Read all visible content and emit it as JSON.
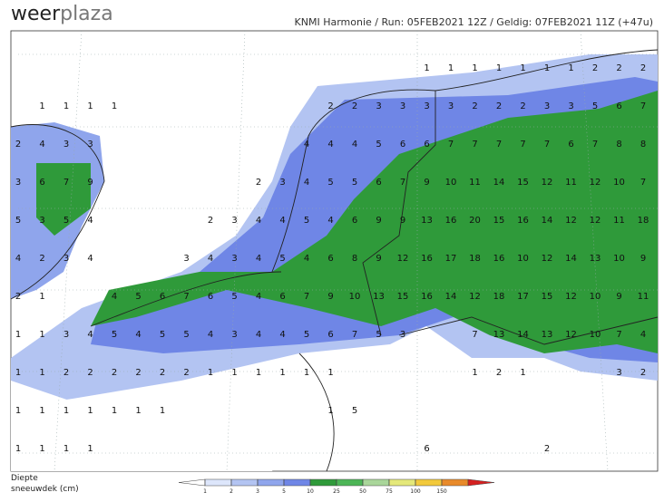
{
  "header": {
    "logo_a": "weer",
    "logo_b": "plaza",
    "model_info": "KNMI Harmonie  /  Run: 05FEB2021 12Z  /  Geldig: 07FEB2021 11Z (+47u)"
  },
  "legend": {
    "title_line1": "Diepte",
    "title_line2": "sneeuwdek (cm)",
    "ticks": [
      1,
      2,
      3,
      5,
      10,
      25,
      50,
      75,
      100,
      150
    ],
    "colors": [
      "#ffffff",
      "#dde6fb",
      "#b3c4f2",
      "#8fa5ec",
      "#6f86e6",
      "#2f9a3a",
      "#4cb556",
      "#a9d69a",
      "#e4e87a",
      "#f2c93b",
      "#e88a2a",
      "#d42020"
    ]
  },
  "map_labels": [
    [
      null,
      null,
      null,
      null,
      null,
      null,
      null,
      null,
      null,
      null,
      null,
      null,
      null,
      null,
      null,
      null,
      null,
      1,
      1,
      1,
      1,
      1,
      1,
      1,
      2,
      2,
      2
    ],
    [
      null,
      1,
      1,
      1,
      1,
      null,
      null,
      null,
      null,
      null,
      null,
      null,
      null,
      2,
      2,
      3,
      3,
      3,
      3,
      2,
      2,
      2,
      3,
      3,
      5,
      6,
      7
    ],
    [
      2,
      4,
      3,
      3,
      null,
      null,
      null,
      null,
      null,
      null,
      null,
      null,
      4,
      4,
      4,
      5,
      6,
      6,
      7,
      7,
      7,
      7,
      7,
      6,
      7,
      8,
      8
    ],
    [
      3,
      6,
      7,
      9,
      null,
      null,
      null,
      null,
      null,
      null,
      2,
      3,
      4,
      5,
      5,
      6,
      7,
      9,
      10,
      11,
      14,
      15,
      12,
      11,
      12,
      10,
      7
    ],
    [
      5,
      3,
      5,
      4,
      null,
      null,
      null,
      null,
      2,
      3,
      4,
      4,
      5,
      4,
      6,
      9,
      9,
      13,
      16,
      20,
      15,
      16,
      14,
      12,
      12,
      11,
      18
    ],
    [
      4,
      2,
      3,
      4,
      null,
      null,
      null,
      3,
      4,
      3,
      4,
      5,
      4,
      6,
      8,
      9,
      12,
      16,
      17,
      18,
      16,
      10,
      12,
      14,
      13,
      10,
      9
    ],
    [
      2,
      1,
      null,
      null,
      4,
      5,
      6,
      7,
      6,
      5,
      4,
      6,
      7,
      9,
      10,
      13,
      15,
      16,
      14,
      12,
      18,
      17,
      15,
      12,
      10,
      9,
      11
    ],
    [
      1,
      1,
      3,
      4,
      5,
      4,
      5,
      5,
      4,
      3,
      4,
      4,
      5,
      6,
      7,
      5,
      3,
      null,
      null,
      7,
      13,
      14,
      13,
      12,
      10,
      7,
      4
    ],
    [
      1,
      1,
      2,
      2,
      2,
      2,
      2,
      2,
      1,
      1,
      1,
      1,
      1,
      1,
      null,
      null,
      null,
      null,
      null,
      1,
      2,
      1,
      null,
      null,
      null,
      3,
      2
    ],
    [
      1,
      1,
      1,
      1,
      1,
      1,
      1,
      null,
      null,
      null,
      null,
      null,
      null,
      1,
      5,
      null,
      null,
      null,
      null,
      null,
      null,
      null,
      null,
      null,
      null,
      null,
      null
    ],
    [
      1,
      1,
      1,
      1,
      null,
      null,
      null,
      null,
      null,
      null,
      null,
      null,
      null,
      null,
      null,
      null,
      null,
      6,
      null,
      null,
      null,
      null,
      2,
      null,
      null,
      null,
      null
    ]
  ]
}
